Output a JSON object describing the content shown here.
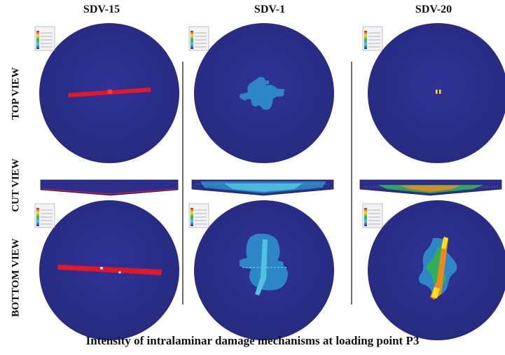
{
  "columns": [
    "SDV-15",
    "SDV-1",
    "SDV-20"
  ],
  "rows": [
    "TOP VIEW",
    "CUT VIEW",
    "BOTTOM VIEW"
  ],
  "caption": "Intensity of intralaminar damage mechanisms at loading point P3",
  "colors": {
    "plate_fill": "#2b2e8a",
    "plate_edge": "#1e1f5c",
    "damage_red": "#e0192a",
    "damage_cyan": "#2f86c7",
    "damage_light_cyan": "#4fc3e0",
    "damage_yellow": "#f2e51b",
    "damage_green": "#2fae5c",
    "damage_orange": "#e88a1c"
  },
  "legend_icon": "contour-legend-icon"
}
